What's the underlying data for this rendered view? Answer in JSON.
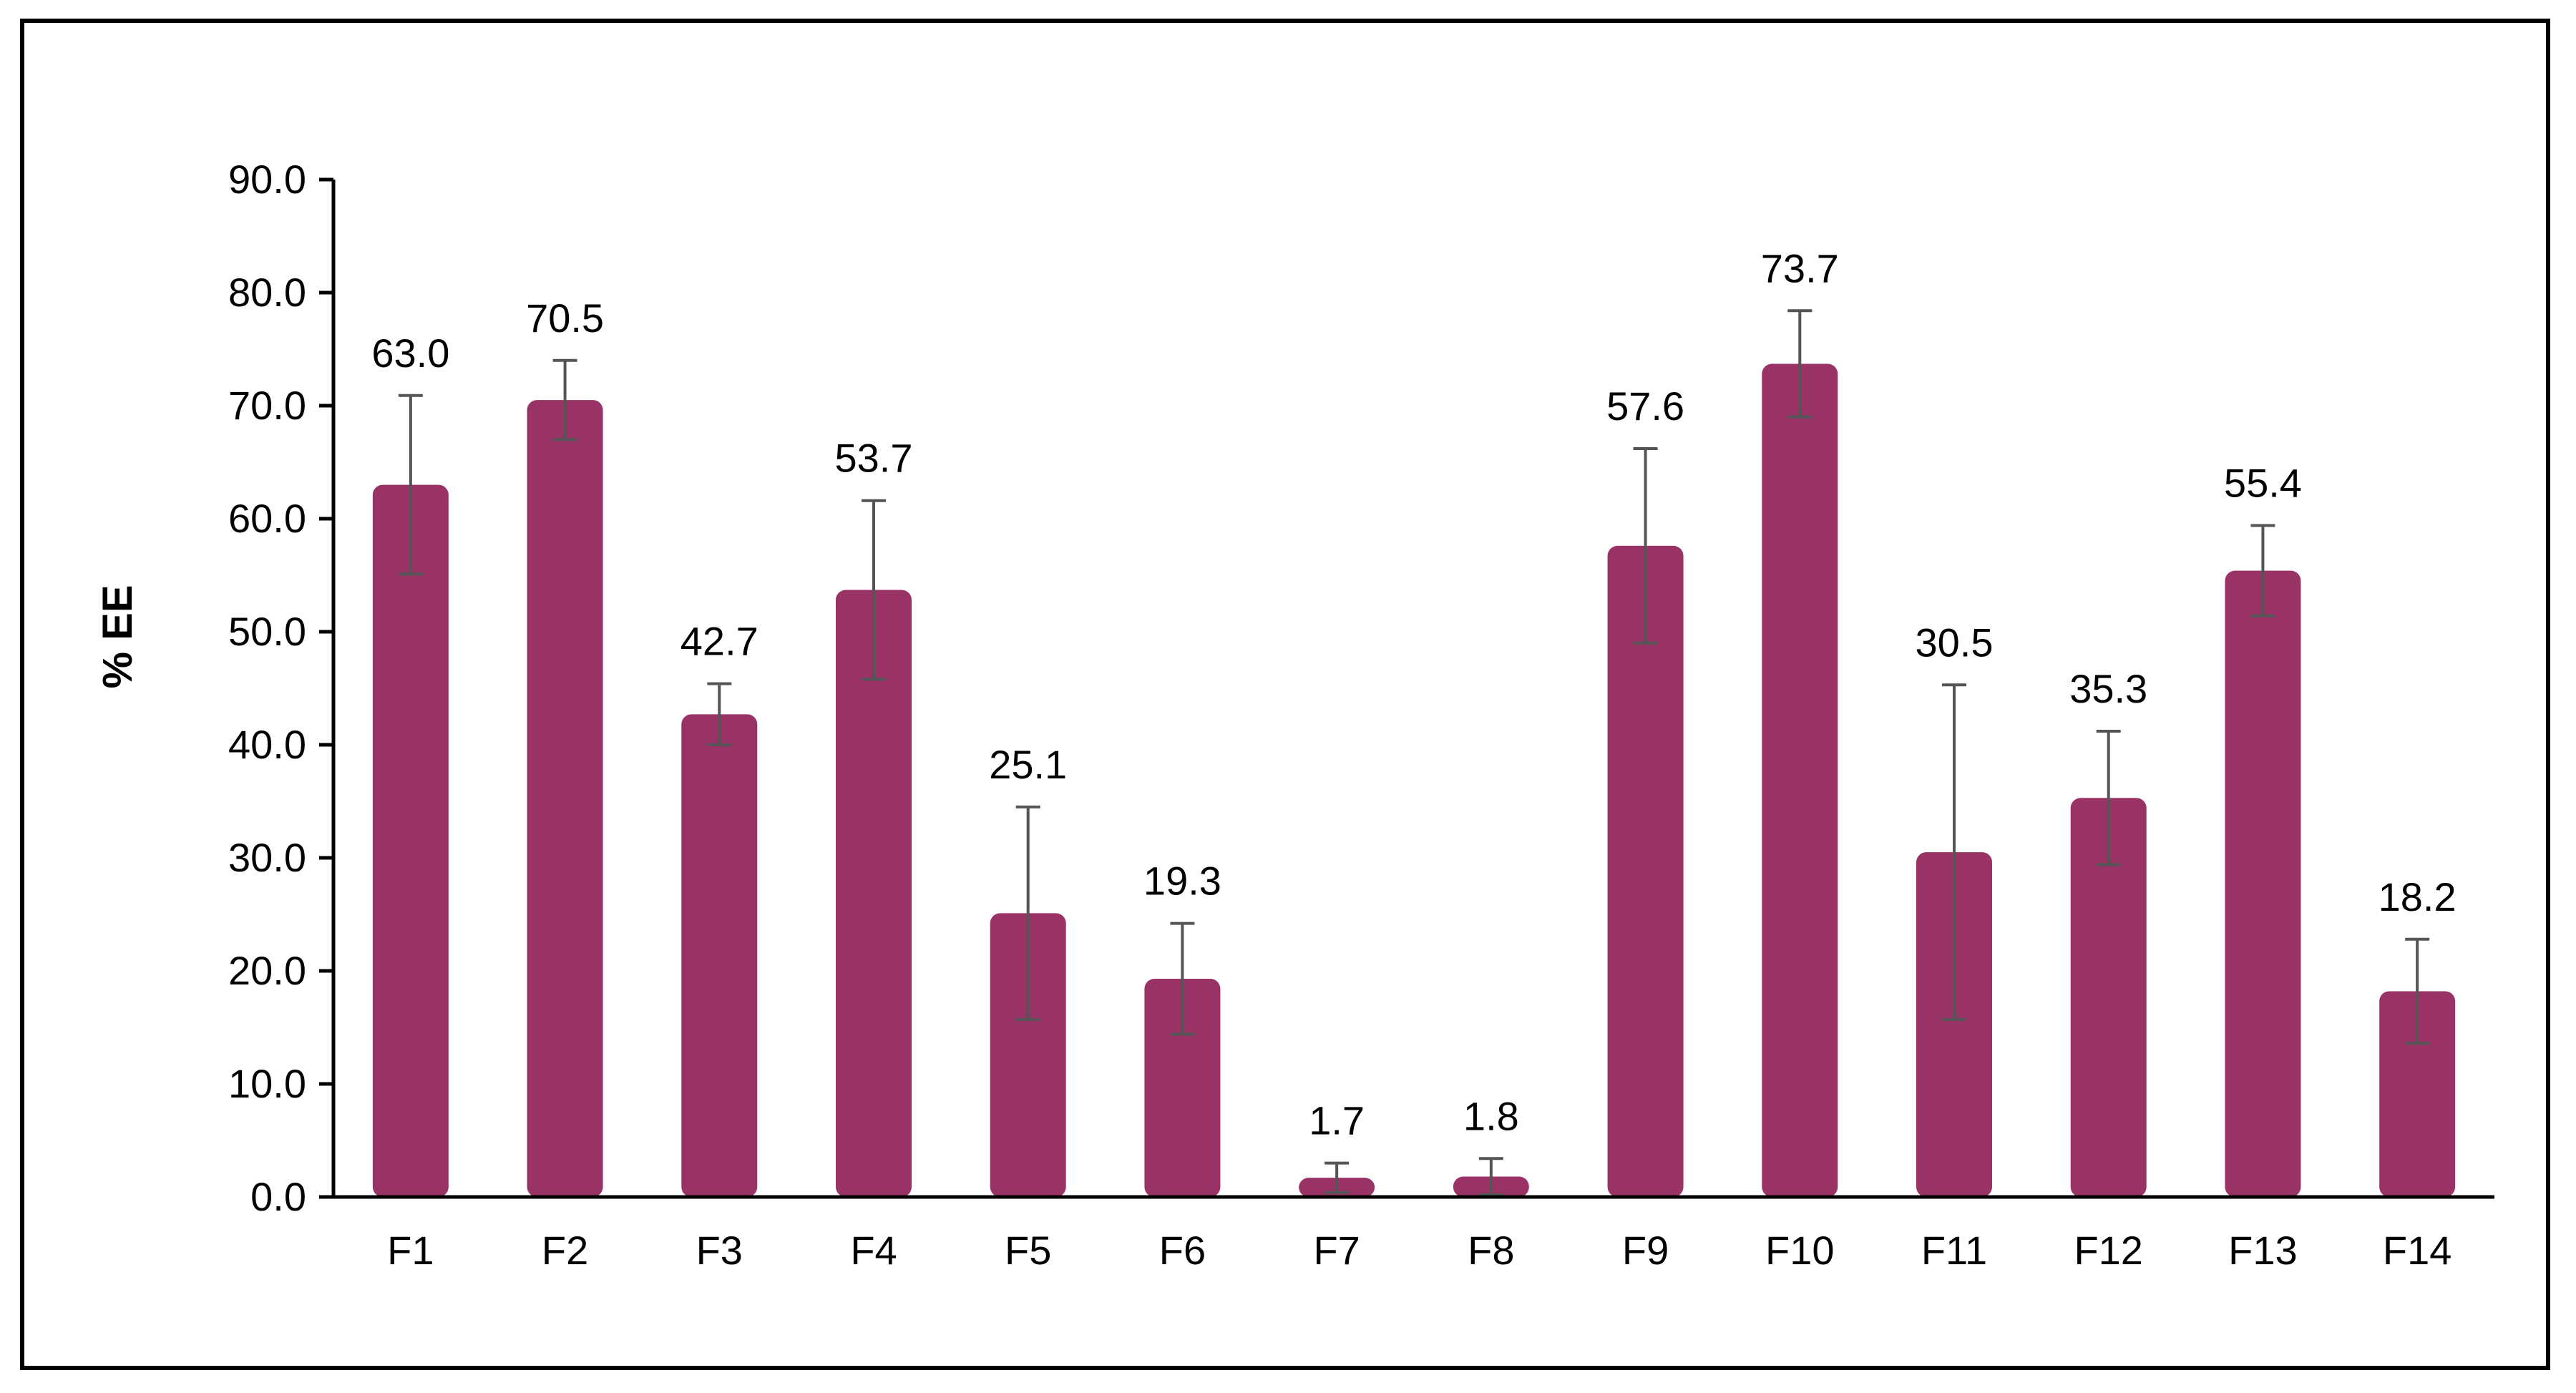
{
  "chart_data": {
    "type": "bar",
    "title": "",
    "xlabel": "",
    "ylabel": "% EE",
    "ylim": [
      0,
      90
    ],
    "yticks": [
      0,
      10,
      20,
      30,
      40,
      50,
      60,
      70,
      80,
      90
    ],
    "ytick_labels": [
      "0.0",
      "10.0",
      "20.0",
      "30.0",
      "40.0",
      "50.0",
      "60.0",
      "70.0",
      "80.0",
      "90.0"
    ],
    "categories": [
      "F1",
      "F2",
      "F3",
      "F4",
      "F5",
      "F6",
      "F7",
      "F8",
      "F9",
      "F10",
      "F11",
      "F12",
      "F13",
      "F14"
    ],
    "values": [
      63.0,
      70.5,
      42.7,
      53.7,
      25.1,
      19.3,
      1.7,
      1.8,
      57.6,
      73.7,
      30.5,
      35.3,
      55.4,
      18.2
    ],
    "value_labels": [
      "63.0",
      "70.5",
      "42.7",
      "53.7",
      "25.1",
      "19.3",
      "1.7",
      "1.8",
      "57.6",
      "73.7",
      "30.5",
      "35.3",
      "55.4",
      "18.2"
    ],
    "error": [
      7.9,
      3.5,
      2.7,
      7.9,
      9.4,
      4.9,
      1.3,
      1.6,
      8.6,
      4.7,
      14.8,
      5.9,
      4.0,
      4.6
    ],
    "bar_color": "#993366",
    "error_bar_color": "#555555",
    "grid": false,
    "legend": "none"
  }
}
